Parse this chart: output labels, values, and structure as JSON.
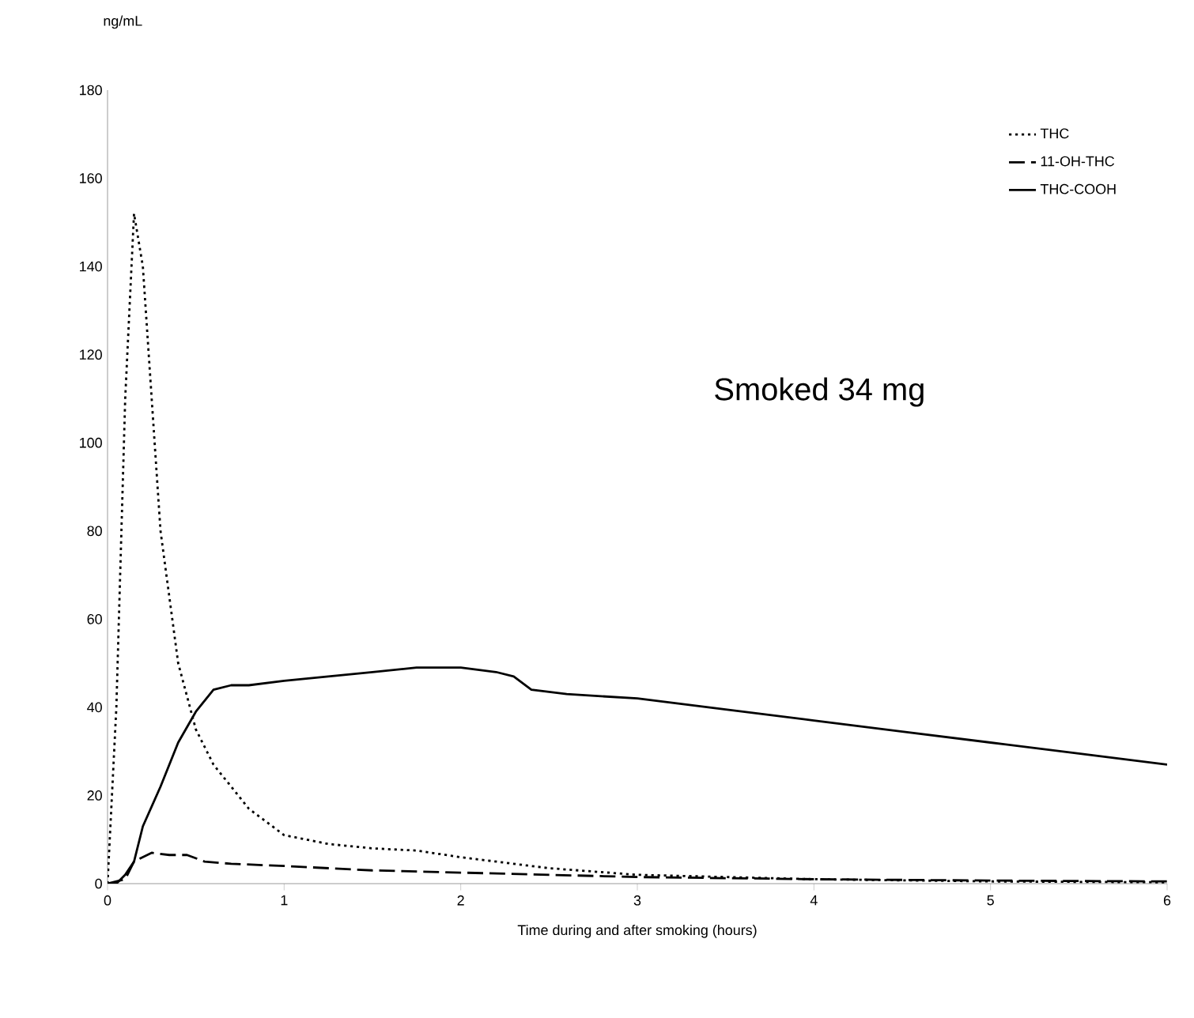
{
  "chart_data": {
    "type": "line",
    "xlabel": "Time during and after smoking (hours)",
    "ylabel": "ng/mL",
    "xlim": [
      0,
      6
    ],
    "ylim": [
      0,
      180
    ],
    "xticks": [
      0,
      1,
      2,
      3,
      4,
      5,
      6
    ],
    "yticks": [
      0,
      20,
      40,
      60,
      80,
      100,
      120,
      140,
      160,
      180
    ],
    "legend": "top right",
    "grid": false,
    "marker": "none",
    "annotations": [
      "Smoked 34 mg"
    ],
    "series": [
      {
        "name": "THC",
        "color": "#000000",
        "line_style": "dotted",
        "x": [
          0,
          0.05,
          0.1,
          0.15,
          0.2,
          0.25,
          0.3,
          0.4,
          0.5,
          0.6,
          0.8,
          1,
          1.25,
          1.5,
          1.75,
          2,
          2.5,
          3,
          3.5,
          4,
          5,
          6
        ],
        "values": [
          0,
          40,
          110,
          152,
          140,
          110,
          80,
          50,
          35,
          27,
          17,
          11,
          9,
          8,
          7.5,
          6,
          3.5,
          2,
          1.5,
          1,
          0.5,
          0.3
        ]
      },
      {
        "name": "11-OH-THC",
        "color": "#000000",
        "line_style": "dashed",
        "x": [
          0,
          0.1,
          0.15,
          0.25,
          0.35,
          0.45,
          0.55,
          0.7,
          1,
          1.5,
          2,
          3,
          4,
          5,
          6
        ],
        "values": [
          0,
          1,
          5,
          7,
          6.5,
          6.5,
          5,
          4.5,
          4,
          3,
          2.5,
          1.5,
          1,
          0.7,
          0.5
        ]
      },
      {
        "name": "THC-COOH",
        "color": "#000000",
        "line_style": "solid",
        "x": [
          0,
          0.05,
          0.1,
          0.15,
          0.2,
          0.3,
          0.4,
          0.5,
          0.6,
          0.7,
          0.8,
          1,
          1.25,
          1.5,
          1.75,
          2,
          2.2,
          2.3,
          2.4,
          2.6,
          3,
          3.5,
          4,
          4.5,
          5,
          5.5,
          6
        ],
        "values": [
          0,
          0,
          2,
          5,
          13,
          22,
          32,
          39,
          44,
          45,
          45,
          46,
          47,
          48,
          49,
          49,
          48,
          47,
          44,
          43,
          42,
          39.5,
          37,
          34.5,
          32,
          29.5,
          27
        ]
      }
    ]
  }
}
